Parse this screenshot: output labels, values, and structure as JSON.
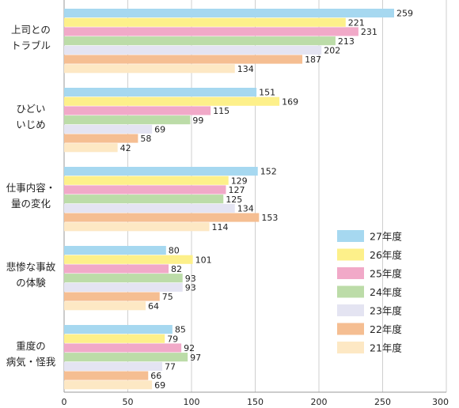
{
  "chart_data": {
    "type": "bar",
    "orientation": "horizontal",
    "title": "",
    "xlabel": "",
    "ylabel": "",
    "xlim": [
      0,
      300
    ],
    "xticks": [
      0,
      50,
      100,
      150,
      200,
      250,
      300
    ],
    "grid": true,
    "legend_position": "right",
    "categories": [
      [
        "上司との",
        "トラブル"
      ],
      [
        "ひどい",
        "いじめ"
      ],
      [
        "仕事内容・",
        "量の変化"
      ],
      [
        "悲惨な事故",
        "の体験"
      ],
      [
        "重度の",
        "病気・怪我"
      ]
    ],
    "series": [
      {
        "name": "27年度",
        "color": "#a6d8f0",
        "values": [
          259,
          151,
          152,
          80,
          85
        ]
      },
      {
        "name": "26年度",
        "color": "#fdf08a",
        "values": [
          221,
          169,
          129,
          101,
          79
        ]
      },
      {
        "name": "25年度",
        "color": "#f1a9c8",
        "values": [
          231,
          115,
          127,
          82,
          92
        ]
      },
      {
        "name": "24年度",
        "color": "#bcdca8",
        "values": [
          213,
          99,
          125,
          93,
          97
        ]
      },
      {
        "name": "23年度",
        "color": "#e4e4f2",
        "values": [
          202,
          69,
          134,
          93,
          77
        ]
      },
      {
        "name": "22年度",
        "color": "#f5be92",
        "values": [
          187,
          58,
          153,
          75,
          66
        ]
      },
      {
        "name": "21年度",
        "color": "#fde8c4",
        "values": [
          134,
          42,
          114,
          64,
          69
        ]
      }
    ]
  }
}
